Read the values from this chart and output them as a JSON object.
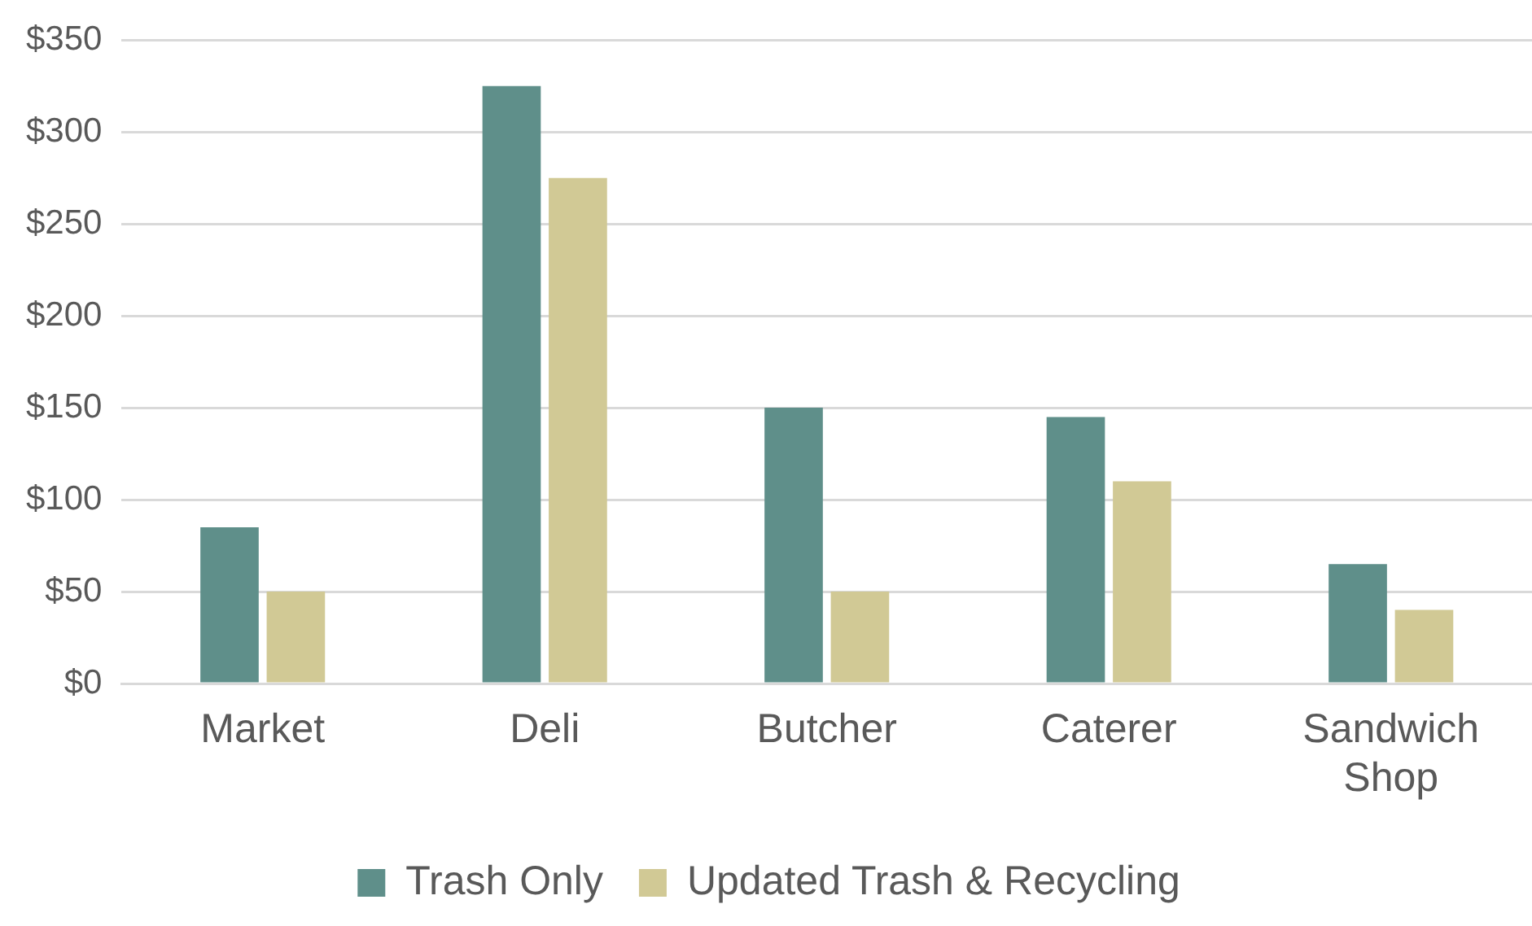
{
  "chart_data": {
    "type": "bar",
    "categories": [
      "Market",
      "Deli",
      "Butcher",
      "Caterer",
      "Sandwich Shop"
    ],
    "series": [
      {
        "name": "Trash Only",
        "color": "#5f8f8a",
        "values": [
          85,
          325,
          150,
          145,
          65
        ]
      },
      {
        "name": "Updated Trash & Recycling",
        "color": "#d1c995",
        "values": [
          50,
          275,
          50,
          110,
          40
        ]
      }
    ],
    "ylim": [
      0,
      350
    ],
    "yticks": [
      {
        "value": 0,
        "label": "$0"
      },
      {
        "value": 50,
        "label": "$50"
      },
      {
        "value": 100,
        "label": "$100"
      },
      {
        "value": 150,
        "label": "$150"
      },
      {
        "value": 200,
        "label": "$200"
      },
      {
        "value": 250,
        "label": "$250"
      },
      {
        "value": 300,
        "label": "$300"
      },
      {
        "value": 350,
        "label": "$350"
      }
    ],
    "grid": "y",
    "legend": "bottom"
  }
}
